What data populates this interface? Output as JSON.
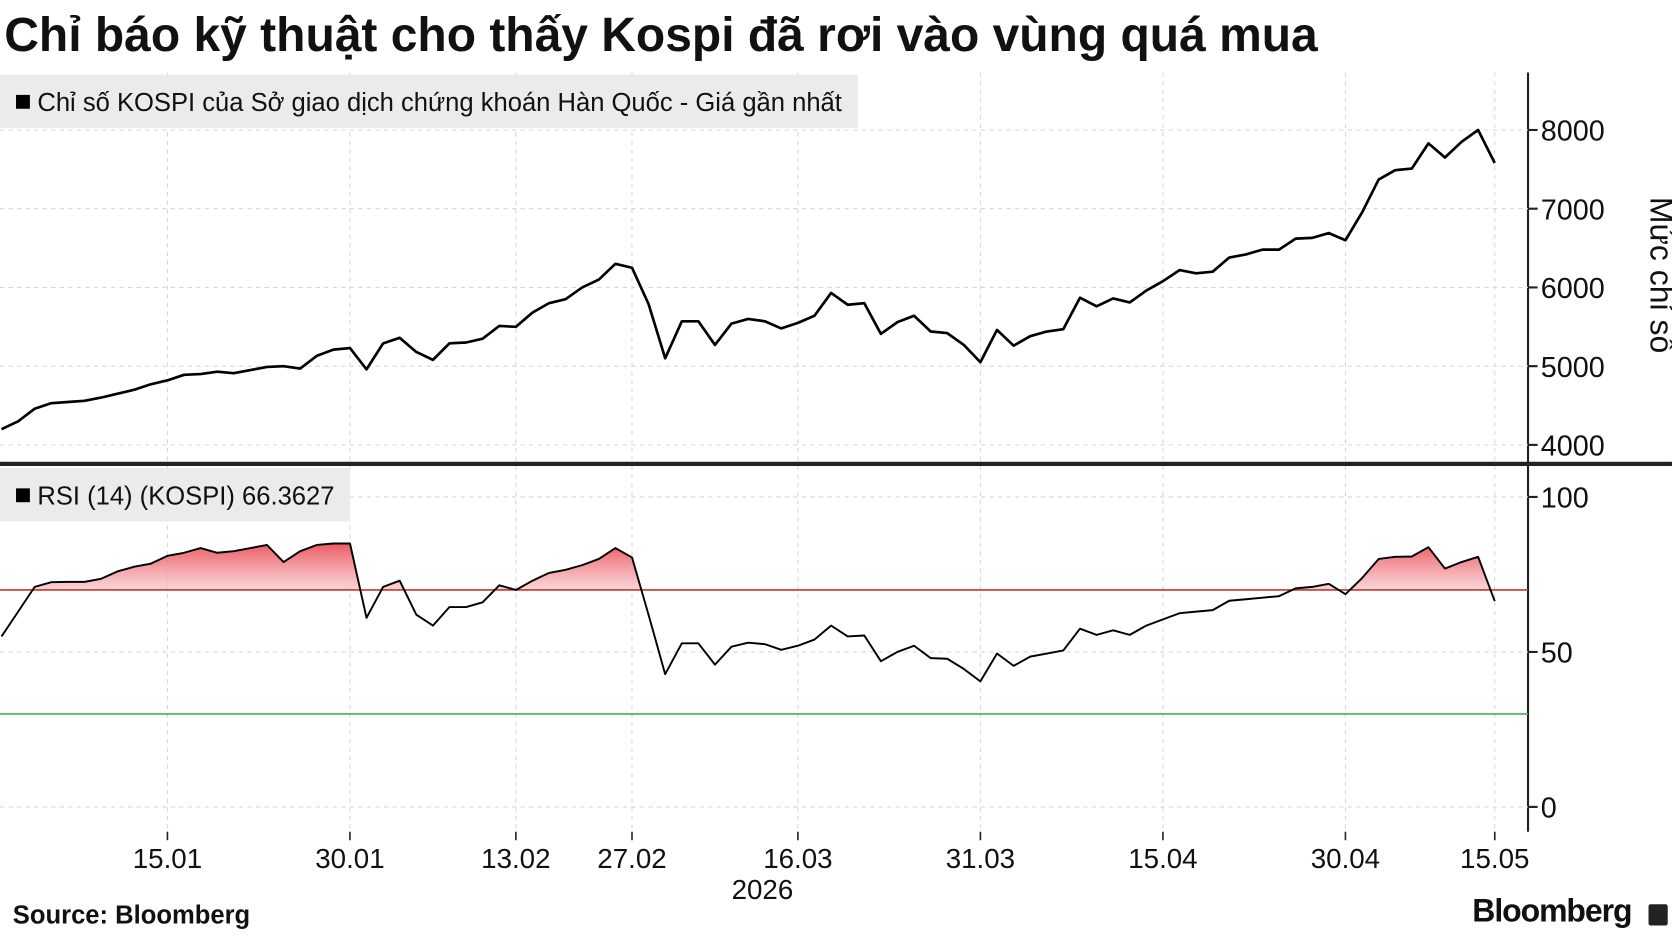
{
  "chart_data": [
    {
      "type": "line",
      "title": "Chỉ báo kỹ thuật cho thấy Kospi đã rơi vào vùng quá mua",
      "y_label": "Mức chỉ số",
      "series": [
        {
          "name": "Chỉ số KOSPI của Sở giao dịch chứng khoán Hàn Quốc - Giá gần nhất",
          "color": "#000000",
          "values": [
            4200,
            4300,
            4460,
            4530,
            4545,
            4560,
            4600,
            4650,
            4700,
            4770,
            4820,
            4890,
            4900,
            4930,
            4910,
            4950,
            4990,
            5000,
            4970,
            5130,
            5210,
            5230,
            4960,
            5290,
            5360,
            5180,
            5080,
            5290,
            5300,
            5350,
            5510,
            5500,
            5680,
            5800,
            5850,
            6000,
            6100,
            6300,
            6250,
            5790,
            5100,
            5570,
            5570,
            5270,
            5540,
            5600,
            5570,
            5480,
            5550,
            5640,
            5930,
            5780,
            5800,
            5410,
            5560,
            5640,
            5440,
            5420,
            5270,
            5050,
            5460,
            5260,
            5380,
            5440,
            5470,
            5870,
            5760,
            5860,
            5810,
            5960,
            6080,
            6220,
            6180,
            6200,
            6380,
            6420,
            6480,
            6480,
            6620,
            6630,
            6690,
            6600,
            6950,
            7370,
            7490,
            7510,
            7830,
            7650,
            7850,
            8000,
            7580
          ]
        }
      ],
      "ylim": [
        3800,
        8730
      ],
      "yticks": [
        4000,
        5000,
        6000,
        7000,
        8000
      ],
      "grid": true
    },
    {
      "type": "line",
      "x_label": "2026",
      "categories": [
        null,
        null,
        null,
        null,
        null,
        null,
        null,
        null,
        null,
        null,
        "15.01",
        null,
        null,
        null,
        null,
        null,
        null,
        null,
        null,
        null,
        null,
        "30.01",
        null,
        null,
        null,
        null,
        null,
        null,
        null,
        null,
        null,
        "13.02",
        null,
        null,
        null,
        null,
        null,
        null,
        "27.02",
        null,
        null,
        null,
        null,
        null,
        null,
        null,
        null,
        null,
        "16.03",
        null,
        null,
        null,
        null,
        null,
        null,
        null,
        null,
        null,
        null,
        "31.03",
        null,
        null,
        null,
        null,
        null,
        null,
        null,
        null,
        null,
        null,
        "15.04",
        null,
        null,
        null,
        null,
        null,
        null,
        null,
        null,
        null,
        null,
        "30.04",
        null,
        null,
        null,
        null,
        null,
        null,
        null,
        null,
        "15.05"
      ],
      "series": [
        {
          "name": "RSI (14) (KOSPI)",
          "color": "#000000",
          "values": [
            55,
            63,
            71,
            72.5,
            72.6,
            72.6,
            73.6,
            76,
            77.5,
            78.5,
            81,
            82,
            83.5,
            82,
            82.5,
            83.5,
            84.5,
            79,
            82.5,
            84.5,
            85,
            85,
            61,
            71,
            73,
            62,
            58.5,
            64.5,
            64.5,
            66,
            71.5,
            70,
            73,
            75.5,
            76.5,
            78,
            80,
            83.5,
            80.5,
            62,
            42.8,
            52.8,
            52.8,
            45.9,
            51.7,
            53,
            52.5,
            50.7,
            52,
            54,
            58.5,
            55,
            55.3,
            47,
            50,
            52,
            48,
            47.8,
            44.5,
            40.5,
            49.5,
            45.5,
            48.5,
            49.5,
            50.5,
            57.5,
            55.5,
            57,
            55.5,
            58.5,
            60.5,
            62.5,
            63,
            63.5,
            66.5,
            67,
            67.5,
            68,
            70.5,
            71,
            72,
            68.6,
            73.8,
            80,
            80.7,
            80.8,
            83.8,
            76.9,
            79,
            80.7,
            66.3627
          ]
        }
      ],
      "ylim": [
        -8,
        110
      ],
      "yticks": [
        0,
        50,
        100
      ],
      "grid": true,
      "overbought": {
        "value": 70,
        "color": "#c0392b"
      },
      "oversold": {
        "value": 30,
        "color": "#4caf50"
      }
    }
  ],
  "source": "Source: Bloomberg",
  "logo": "Bloomberg"
}
